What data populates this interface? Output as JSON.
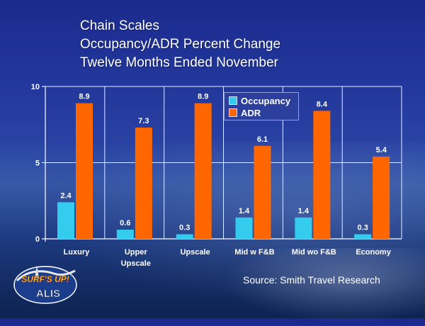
{
  "title_lines": [
    "Chain Scales",
    "Occupancy/ADR Percent Change",
    "Twelve Months Ended November"
  ],
  "source": "Source: Smith Travel Research",
  "logo": {
    "text_top": "SURF'S UP!",
    "text_bottom": "ALIS"
  },
  "colors": {
    "occupancy": "#33ccee",
    "adr": "#ff6600"
  },
  "chart_data": {
    "type": "bar",
    "categories": [
      "Luxury",
      "Upper\nUpscale",
      "Upscale",
      "Mid w F&B",
      "Mid wo F&B",
      "Economy"
    ],
    "series": [
      {
        "name": "Occupancy",
        "values": [
          2.4,
          0.6,
          0.3,
          1.4,
          1.4,
          0.3
        ]
      },
      {
        "name": "ADR",
        "values": [
          8.9,
          7.3,
          8.9,
          6.1,
          8.4,
          5.4
        ]
      }
    ],
    "ylim": [
      0,
      10
    ],
    "yticks": [
      0,
      5,
      10
    ],
    "legend": "top-right",
    "grid": true
  }
}
